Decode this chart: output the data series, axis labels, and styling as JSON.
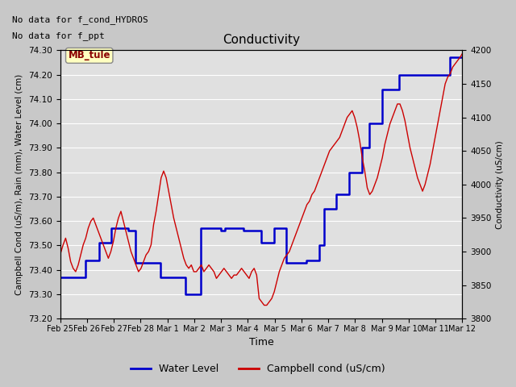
{
  "title": "Conductivity",
  "xlabel": "Time",
  "ylabel_left": "Campbell Cond (uS/m), Rain (mm), Water Level (cm)",
  "ylabel_right": "Conductivity (uS/cm)",
  "annotations": [
    "No data for f_cond_HYDROS",
    "No data for f_ppt"
  ],
  "box_label": "MB_tule",
  "ylim_left": [
    73.2,
    74.3
  ],
  "ylim_right": [
    3800,
    4200
  ],
  "yticks_left": [
    73.2,
    73.3,
    73.4,
    73.5,
    73.6,
    73.7,
    73.8,
    73.9,
    74.0,
    74.1,
    74.2,
    74.3
  ],
  "yticks_right": [
    3800,
    3850,
    3900,
    3950,
    4000,
    4050,
    4100,
    4150,
    4200
  ],
  "xtick_labels": [
    "Feb 25",
    "Feb 26",
    "Feb 27",
    "Feb 28",
    "Mar 1",
    "Mar 2",
    "Mar 3",
    "Mar 4",
    "Mar 5",
    "Mar 6",
    "Mar 7",
    "Mar 8",
    "Mar 9",
    "Mar 10",
    "Mar 11",
    "Mar 12"
  ],
  "blue_color": "#0000cc",
  "red_color": "#cc0000",
  "legend_labels": [
    "Water Level",
    "Campbell cond (uS/cm)"
  ],
  "wl_x": [
    0.0,
    0.05,
    0.5,
    0.55,
    1.0,
    1.05,
    1.3,
    1.35,
    1.55,
    1.6,
    1.9,
    1.95,
    2.05,
    2.1,
    2.4,
    2.45,
    2.7,
    2.75,
    3.0,
    3.05,
    3.2,
    3.25,
    4.0,
    4.05,
    4.5,
    4.55,
    5.0,
    5.05,
    5.4,
    5.45,
    5.6,
    5.65,
    6.0,
    6.05,
    6.4,
    6.45,
    6.55,
    6.6,
    7.0,
    7.05,
    7.3,
    7.35,
    7.5,
    7.55,
    7.7,
    7.75,
    8.0,
    8.05,
    8.2,
    8.25,
    8.5,
    8.55,
    9.0,
    9.05,
    9.3,
    9.35,
    9.5,
    9.55,
    9.8,
    9.85,
    10.0,
    10.05,
    10.3,
    10.35,
    10.5,
    10.55,
    10.7,
    10.75,
    11.0,
    11.05,
    11.2,
    11.25,
    11.5,
    11.55,
    11.7,
    11.75,
    12.0,
    12.05,
    12.3,
    12.35,
    12.5,
    12.55,
    12.8,
    12.85,
    13.0,
    13.05,
    13.5,
    13.55,
    13.8,
    13.85,
    14.0,
    14.05,
    14.3,
    14.35,
    14.6,
    14.65,
    15.0,
    15.05,
    15.5,
    15.55,
    16.0
  ],
  "wl_y": [
    73.37,
    73.37,
    73.37,
    73.37,
    73.44,
    73.44,
    73.44,
    73.44,
    73.51,
    73.51,
    73.51,
    73.51,
    73.57,
    73.57,
    73.57,
    73.57,
    73.56,
    73.56,
    73.43,
    73.43,
    73.43,
    73.43,
    73.37,
    73.37,
    73.37,
    73.37,
    73.3,
    73.3,
    73.3,
    73.3,
    73.57,
    73.57,
    73.57,
    73.57,
    73.56,
    73.56,
    73.57,
    73.57,
    73.57,
    73.57,
    73.56,
    73.56,
    73.56,
    73.56,
    73.56,
    73.56,
    73.51,
    73.51,
    73.51,
    73.51,
    73.57,
    73.57,
    73.43,
    73.43,
    73.43,
    73.43,
    73.43,
    73.43,
    73.44,
    73.44,
    73.44,
    73.44,
    73.5,
    73.5,
    73.65,
    73.65,
    73.65,
    73.65,
    73.71,
    73.71,
    73.71,
    73.71,
    73.8,
    73.8,
    73.8,
    73.8,
    73.9,
    73.9,
    74.0,
    74.0,
    74.0,
    74.0,
    74.14,
    74.14,
    74.14,
    74.14,
    74.2,
    74.2,
    74.2,
    74.2,
    74.2,
    74.2,
    74.2,
    74.2,
    74.2,
    74.2,
    74.2,
    74.2,
    74.27,
    74.27,
    74.27
  ],
  "camp_x": [
    0.0,
    0.12,
    0.22,
    0.32,
    0.42,
    0.52,
    0.62,
    0.72,
    0.82,
    0.92,
    1.02,
    1.12,
    1.22,
    1.32,
    1.42,
    1.52,
    1.62,
    1.72,
    1.82,
    1.92,
    2.02,
    2.12,
    2.22,
    2.32,
    2.42,
    2.52,
    2.62,
    2.72,
    2.82,
    2.92,
    3.02,
    3.12,
    3.22,
    3.32,
    3.42,
    3.52,
    3.62,
    3.72,
    3.82,
    3.92,
    4.02,
    4.12,
    4.22,
    4.32,
    4.42,
    4.52,
    4.62,
    4.72,
    4.82,
    4.92,
    5.02,
    5.12,
    5.22,
    5.32,
    5.42,
    5.52,
    5.62,
    5.72,
    5.82,
    5.92,
    6.02,
    6.12,
    6.22,
    6.32,
    6.42,
    6.52,
    6.62,
    6.72,
    6.82,
    6.92,
    7.02,
    7.12,
    7.22,
    7.32,
    7.42,
    7.52,
    7.62,
    7.72,
    7.82,
    7.92,
    8.02,
    8.12,
    8.22,
    8.32,
    8.42,
    8.52,
    8.62,
    8.72,
    8.82,
    8.92,
    9.02,
    9.12,
    9.22,
    9.32,
    9.42,
    9.52,
    9.62,
    9.72,
    9.82,
    9.92,
    10.02,
    10.12,
    10.22,
    10.32,
    10.42,
    10.52,
    10.62,
    10.72,
    10.82,
    10.92,
    11.02,
    11.12,
    11.22,
    11.32,
    11.42,
    11.52,
    11.62,
    11.72,
    11.82,
    11.92,
    12.02,
    12.12,
    12.22,
    12.32,
    12.42,
    12.52,
    12.62,
    12.72,
    12.82,
    12.92,
    13.02,
    13.12,
    13.22,
    13.32,
    13.42,
    13.52,
    13.62,
    13.72,
    13.82,
    13.92,
    14.02,
    14.12,
    14.22,
    14.32,
    14.42,
    14.52,
    14.62,
    14.72,
    14.82,
    14.92,
    15.02,
    15.12,
    15.22,
    15.32,
    15.42,
    15.52,
    15.62,
    15.72,
    15.82,
    15.92,
    16.0
  ],
  "camp_y": [
    3895,
    3910,
    3920,
    3905,
    3885,
    3875,
    3870,
    3880,
    3895,
    3910,
    3920,
    3935,
    3945,
    3950,
    3940,
    3930,
    3920,
    3910,
    3900,
    3890,
    3900,
    3915,
    3935,
    3950,
    3960,
    3945,
    3930,
    3915,
    3900,
    3890,
    3880,
    3870,
    3875,
    3885,
    3895,
    3900,
    3910,
    3940,
    3960,
    3985,
    4010,
    4020,
    4010,
    3990,
    3970,
    3950,
    3935,
    3920,
    3905,
    3890,
    3880,
    3875,
    3880,
    3870,
    3870,
    3875,
    3880,
    3870,
    3875,
    3880,
    3875,
    3870,
    3860,
    3865,
    3870,
    3875,
    3870,
    3865,
    3860,
    3865,
    3865,
    3870,
    3875,
    3870,
    3865,
    3860,
    3870,
    3875,
    3865,
    3830,
    3825,
    3820,
    3820,
    3825,
    3830,
    3840,
    3855,
    3870,
    3880,
    3890,
    3895,
    3900,
    3910,
    3920,
    3930,
    3940,
    3950,
    3960,
    3970,
    3975,
    3985,
    3990,
    4000,
    4010,
    4020,
    4030,
    4040,
    4050,
    4055,
    4060,
    4065,
    4070,
    4080,
    4090,
    4100,
    4105,
    4110,
    4100,
    4085,
    4065,
    4040,
    4020,
    3995,
    3985,
    3990,
    4000,
    4010,
    4025,
    4040,
    4060,
    4075,
    4090,
    4100,
    4110,
    4120,
    4120,
    4110,
    4095,
    4075,
    4055,
    4040,
    4025,
    4010,
    4000,
    3990,
    4000,
    4015,
    4030,
    4050,
    4070,
    4090,
    4110,
    4130,
    4150,
    4160,
    4165,
    4175,
    4180,
    4185,
    4190,
    4195
  ]
}
